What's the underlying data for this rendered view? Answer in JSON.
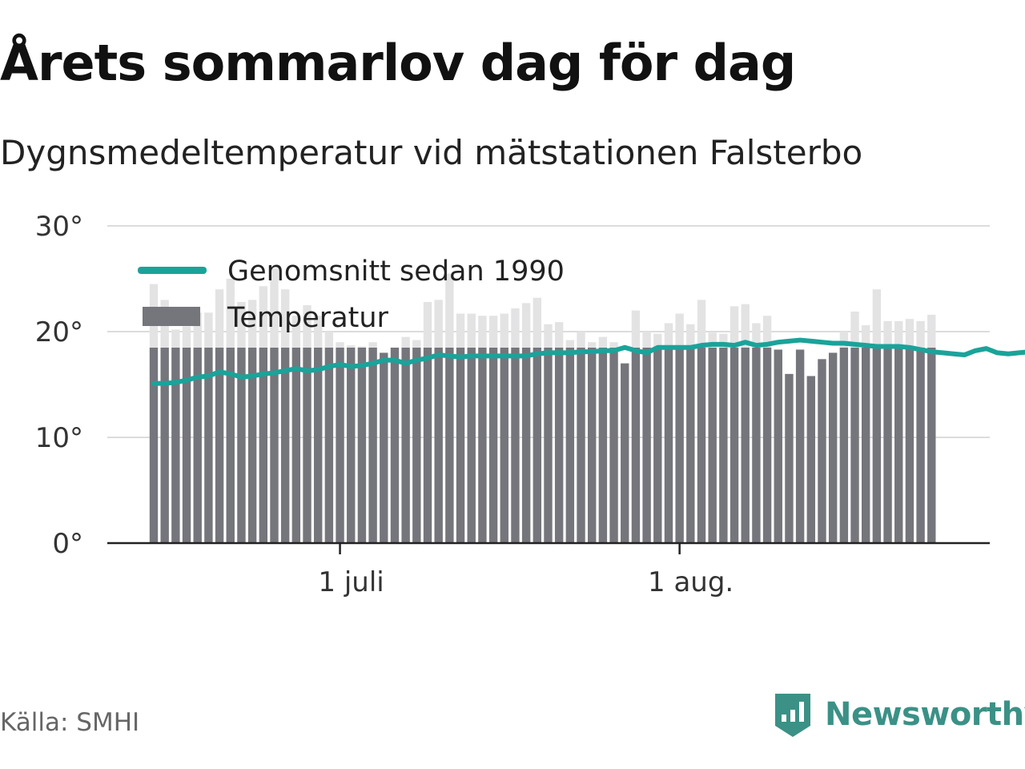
{
  "title": "Årets sommarlov dag för dag",
  "subtitle": "Dygnsmedeltemperatur vid mätstationen Falsterbo",
  "source": "Källa: SMHI",
  "brand": {
    "name": "Newsworthy",
    "icon": "bar-chart-icon",
    "color": "#3b9186"
  },
  "chart_data": {
    "type": "bar",
    "y_ticks": [
      {
        "value": 0,
        "label": "0°"
      },
      {
        "value": 10,
        "label": "10°"
      },
      {
        "value": 20,
        "label": "20°"
      },
      {
        "value": 30,
        "label": "30°"
      }
    ],
    "ylim": [
      0,
      30
    ],
    "x_ticks": [
      {
        "day": 17,
        "label": "1 juli"
      },
      {
        "day": 48,
        "label": "1 aug."
      }
    ],
    "grid": true,
    "legend_position": "top-left",
    "series": [
      {
        "name": "Genomsnitt sedan 1990",
        "kind": "line",
        "color": "#1aa39a",
        "values": [
          15.1,
          15.1,
          15.2,
          15.4,
          15.7,
          15.8,
          16.2,
          16.0,
          15.7,
          15.8,
          16.0,
          16.1,
          16.3,
          16.5,
          16.3,
          16.4,
          16.7,
          16.9,
          16.7,
          16.8,
          17.0,
          17.3,
          17.3,
          17.0,
          17.3,
          17.5,
          17.8,
          17.7,
          17.6,
          17.7,
          17.7,
          17.7,
          17.7,
          17.7,
          17.7,
          17.9,
          18.0,
          18.0,
          18.0,
          18.1,
          18.1,
          18.2,
          18.2,
          18.5,
          18.2,
          18.0,
          18.5,
          18.5,
          18.5,
          18.5,
          18.7,
          18.8,
          18.8,
          18.7,
          19.0,
          18.7,
          18.8,
          19.0,
          19.1,
          19.2,
          19.1,
          19.0,
          18.9,
          18.9,
          18.8,
          18.7,
          18.6,
          18.6,
          18.6,
          18.5,
          18.3,
          18.1,
          18.0,
          17.9,
          17.8,
          18.2,
          18.4,
          18.0,
          17.9,
          18.0,
          18.1,
          18.2
        ]
      },
      {
        "name": "Temperatur",
        "kind": "bar",
        "color": "#75757c",
        "faded_color": "#e3e3e4",
        "values": [
          24.5,
          23.0,
          20.2,
          20.5,
          21.8,
          21.8,
          24.0,
          25.0,
          22.8,
          23.0,
          24.3,
          26.0,
          24.0,
          21.5,
          22.5,
          21.5,
          20.0,
          19.0,
          18.7,
          18.6,
          19.0,
          18.0,
          18.5,
          19.5,
          19.2,
          22.8,
          23.0,
          25.5,
          21.7,
          21.7,
          21.5,
          21.5,
          21.7,
          22.2,
          22.7,
          23.2,
          20.7,
          20.9,
          19.2,
          20.0,
          19.0,
          19.5,
          19.0,
          17.0,
          22.0,
          20.0,
          19.8,
          20.8,
          21.7,
          20.7,
          23.0,
          19.9,
          19.8,
          22.4,
          22.6,
          20.8,
          21.5,
          18.3,
          16.0,
          18.3,
          15.8,
          17.4,
          18.0,
          20.0,
          21.9,
          20.6,
          24.0,
          21.0,
          21.0,
          21.2,
          21.0,
          21.6
        ]
      }
    ]
  }
}
